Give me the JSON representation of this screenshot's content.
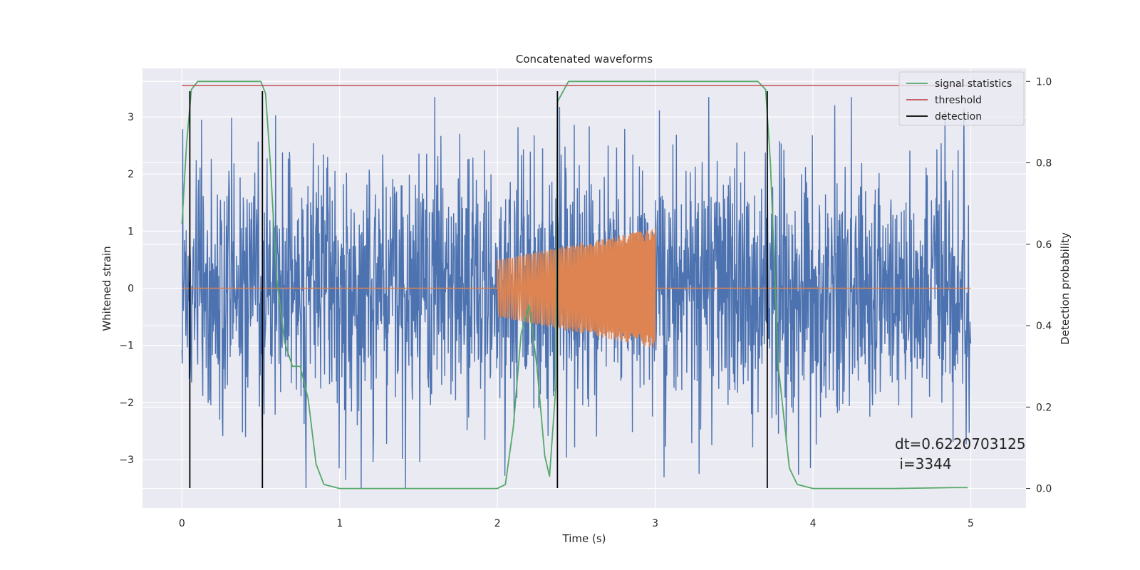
{
  "chart_data": {
    "type": "line",
    "title": "Concatenated waveforms",
    "xlabel": "Time (s)",
    "ylabel": "Whitened strain",
    "ylabel_right": "Detection probability",
    "xlim": [
      -0.25,
      5.35
    ],
    "ylim": [
      -3.85,
      3.85
    ],
    "ylim_right": [
      -0.048,
      1.032
    ],
    "xticks": [
      0,
      1,
      2,
      3,
      4,
      5
    ],
    "yticks": [
      3,
      2,
      1,
      0,
      -1,
      -2,
      -3
    ],
    "yticks_right": [
      1.0,
      0.8,
      0.6,
      0.4,
      0.2,
      0.0
    ],
    "xtick_labels": [
      "0",
      "1",
      "2",
      "3",
      "4",
      "5"
    ],
    "ytick_labels": [
      "3",
      "2",
      "1",
      "0",
      "−1",
      "−2",
      "−3"
    ],
    "ytick_right_labels": [
      "1.0",
      "0.8",
      "0.6",
      "0.4",
      "0.2",
      "0.0"
    ],
    "grid": true,
    "legend_position": "top-right",
    "colors": {
      "strain": "#4c72b0",
      "injection": "#dd8452",
      "signal_statistics": "#55a868",
      "threshold": "#c44e52",
      "detection": "#000000",
      "axes_background": "#eaeaf2",
      "grid": "#ffffff"
    },
    "series": [
      {
        "name": "",
        "role": "whitened strain noise",
        "x_range": [
          0,
          5
        ],
        "samples": 2048,
        "amplitude_typical": 1.6,
        "peak_values": [
          3.2,
          3.1,
          3.0,
          2.9,
          3.3,
          -3.5,
          -3.5,
          -3.4,
          -3.4
        ]
      },
      {
        "name": "",
        "role": "injected chirp",
        "x": [
          0,
          2,
          2,
          3,
          3,
          5
        ],
        "envelope": [
          0,
          0,
          0.5,
          1.05,
          0,
          0
        ]
      },
      {
        "name": "signal statistics",
        "axis": "right",
        "x": [
          0,
          0.03,
          0.06,
          0.1,
          0.15,
          0.3,
          0.45,
          0.5,
          0.53,
          0.56,
          0.6,
          0.65,
          0.7,
          0.75,
          0.8,
          0.85,
          0.9,
          1.0,
          1.5,
          2.0,
          2.05,
          2.1,
          2.15,
          2.2,
          2.25,
          2.3,
          2.33,
          2.37,
          2.38,
          2.45,
          3.0,
          3.65,
          3.7,
          3.73,
          3.78,
          3.85,
          3.9,
          4.0,
          4.5,
          4.9,
          4.98
        ],
        "y": [
          0.65,
          0.85,
          0.98,
          1.0,
          1.0,
          1.0,
          1.0,
          1.0,
          0.97,
          0.8,
          0.52,
          0.36,
          0.3,
          0.3,
          0.22,
          0.06,
          0.01,
          0.0,
          0.0,
          0.0,
          0.01,
          0.15,
          0.38,
          0.45,
          0.3,
          0.08,
          0.03,
          0.25,
          0.95,
          1.0,
          1.0,
          1.0,
          0.98,
          0.8,
          0.3,
          0.05,
          0.01,
          0.0,
          0.0,
          0.002,
          0.002
        ]
      },
      {
        "name": "threshold",
        "axis": "right",
        "x": [
          0,
          5
        ],
        "y": [
          0.99,
          0.99
        ]
      },
      {
        "name": "detection",
        "axis": "left",
        "x": [
          0.05,
          0.51,
          2.38,
          3.71
        ],
        "y_range": [
          -3.5,
          3.45
        ]
      }
    ],
    "annotation": {
      "line1": "dt=0.6220703125",
      "line2": " i=3344"
    }
  }
}
